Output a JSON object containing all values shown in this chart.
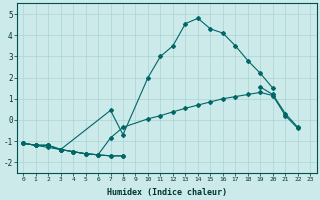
{
  "title": "",
  "xlabel": "Humidex (Indice chaleur)",
  "bg_color": "#cceaea",
  "grid_color": "#aad4d4",
  "line_color": "#006666",
  "xlim": [
    -0.5,
    23.5
  ],
  "ylim": [
    -2.5,
    5.5
  ],
  "yticks": [
    -2,
    -1,
    0,
    1,
    2,
    3,
    4,
    5
  ],
  "xticks": [
    0,
    1,
    2,
    3,
    4,
    5,
    6,
    7,
    8,
    9,
    10,
    11,
    12,
    13,
    14,
    15,
    16,
    17,
    18,
    19,
    20,
    21,
    22,
    23
  ],
  "line_min": {
    "x": [
      0,
      1,
      2,
      3,
      4,
      5,
      6,
      7,
      8
    ],
    "y": [
      -1.1,
      -1.2,
      -1.2,
      -1.4,
      -1.5,
      -1.6,
      -1.65,
      -1.7,
      -1.7
    ]
  },
  "line_low": {
    "x": [
      0,
      1,
      2,
      3,
      4,
      5,
      6,
      7,
      8,
      19,
      20,
      21,
      22
    ],
    "y": [
      -1.1,
      -1.2,
      -1.2,
      -1.4,
      -1.5,
      -1.6,
      -1.65,
      -1.7,
      -1.7,
      1.55,
      1.2,
      0.3,
      -0.35
    ],
    "seg1_end": 9,
    "seg2_start": 9
  },
  "line_mid": {
    "x": [
      0,
      1,
      2,
      3,
      4,
      5,
      6,
      7,
      8,
      10,
      11,
      12,
      13,
      14,
      15,
      16,
      17,
      18,
      19,
      20,
      21,
      22
    ],
    "y": [
      -1.1,
      -1.2,
      -1.2,
      -1.4,
      -1.5,
      -1.6,
      -1.65,
      -0.85,
      -0.35,
      0.05,
      0.2,
      0.38,
      0.55,
      0.7,
      0.85,
      1.0,
      1.1,
      1.2,
      1.3,
      1.15,
      0.2,
      -0.4
    ]
  },
  "line_main": {
    "x": [
      0,
      1,
      2,
      3,
      7,
      8,
      10,
      11,
      12,
      13,
      14,
      15,
      16,
      17,
      18,
      19,
      20
    ],
    "y": [
      -1.1,
      -1.2,
      -1.3,
      -1.4,
      0.45,
      -0.7,
      2.0,
      3.0,
      3.5,
      4.55,
      4.8,
      4.3,
      4.1,
      3.5,
      2.8,
      2.2,
      1.5
    ]
  }
}
